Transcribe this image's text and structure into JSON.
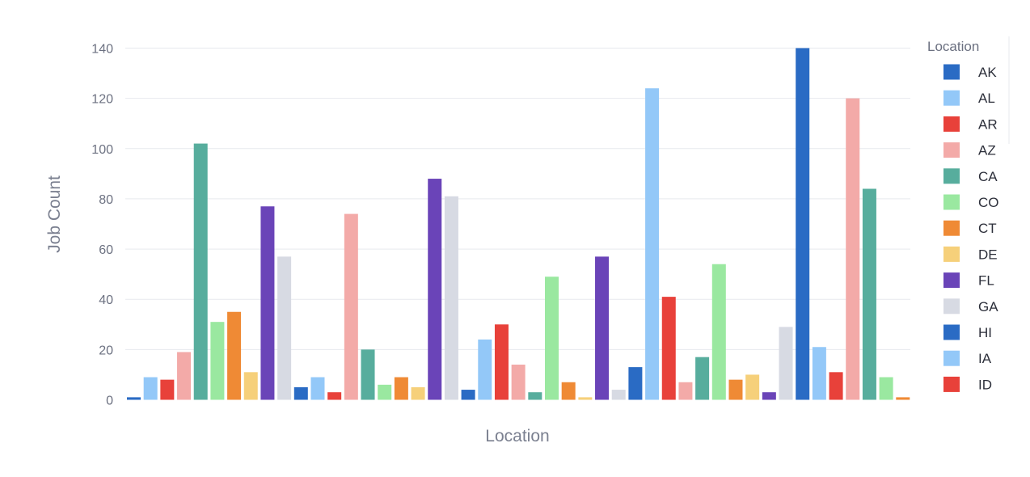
{
  "chart_data": {
    "type": "bar",
    "xlabel": "Location",
    "ylabel": "Job Count",
    "ylim": [
      0,
      140
    ],
    "yticks": [
      0,
      20,
      40,
      60,
      80,
      100,
      120,
      140
    ],
    "grid": true,
    "legend": {
      "title": "Location",
      "placement": "right",
      "entries": [
        "AK",
        "AL",
        "AR",
        "AZ",
        "CA",
        "CO",
        "CT",
        "DE",
        "FL",
        "GA",
        "HI",
        "IA",
        "ID"
      ]
    },
    "colors": [
      "#2a6bc4",
      "#93c8f8",
      "#e8413a",
      "#f3aaa8",
      "#57ad9d",
      "#9ae8a0",
      "#ef8a35",
      "#f6d07a",
      "#6a44b8",
      "#d7dae3"
    ],
    "values": [
      1,
      9,
      8,
      19,
      102,
      31,
      35,
      11,
      77,
      57,
      5,
      9,
      3,
      74,
      20,
      6,
      9,
      5,
      88,
      81,
      4,
      24,
      30,
      14,
      3,
      49,
      7,
      1,
      57,
      4,
      13,
      124,
      41,
      7,
      17,
      54,
      8,
      10,
      3,
      29,
      140,
      21,
      11,
      120,
      84,
      9,
      1
    ]
  }
}
